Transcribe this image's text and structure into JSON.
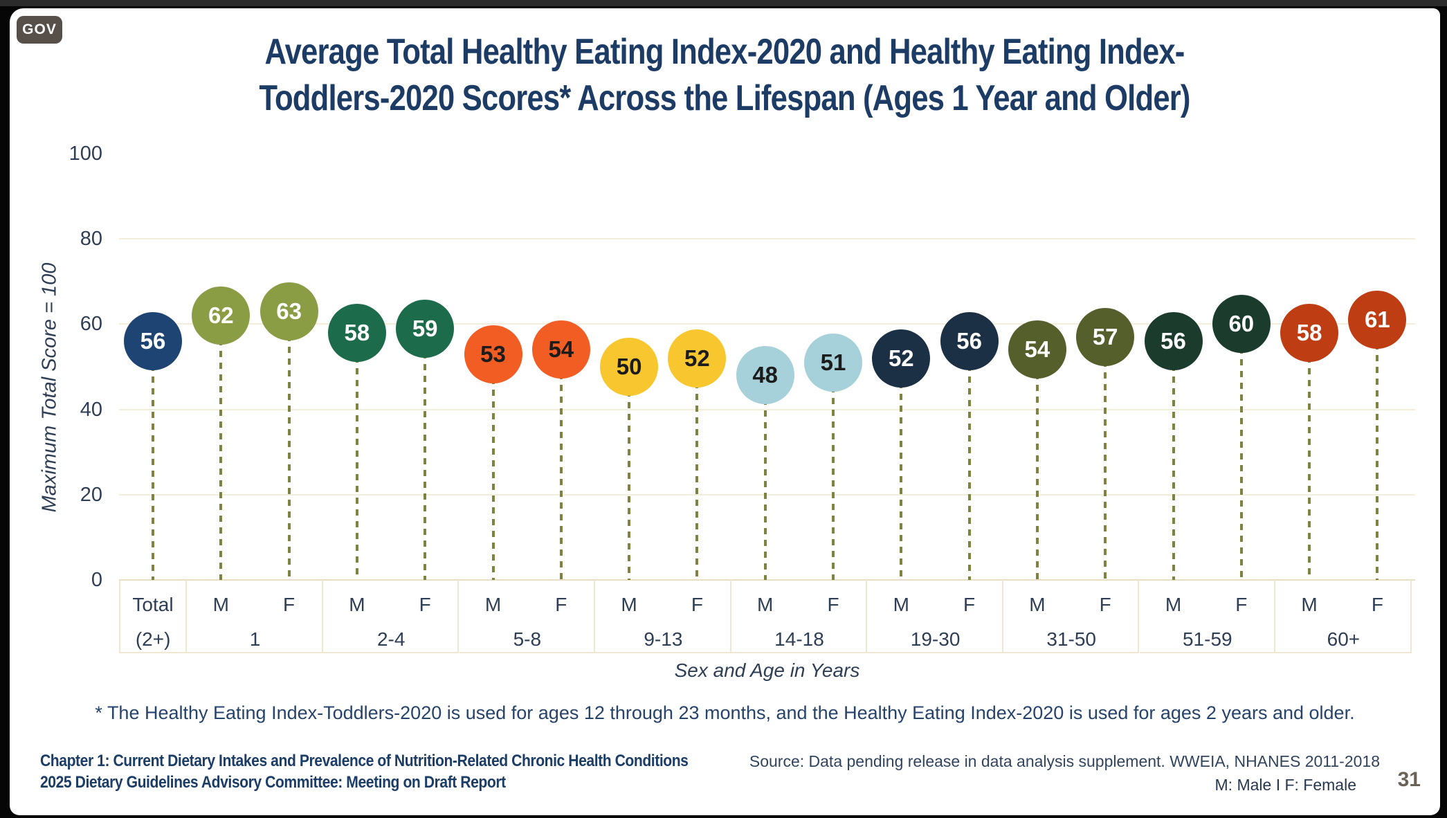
{
  "badge": {
    "label": "GOV"
  },
  "title": {
    "line1": "Average Total Healthy Eating Index-2020 and Healthy Eating Index-",
    "line2": "Toddlers-2020 Scores* Across the Lifespan (Ages 1 Year and Older)"
  },
  "chart_data": {
    "type": "lollipop",
    "title": "Average Total Healthy Eating Index-2020 and Healthy Eating Index-Toddlers-2020 Scores* Across the Lifespan (Ages 1 Year and Older)",
    "ylabel": "Maximum Total Score = 100",
    "xlabel": "Sex and Age in Years",
    "ylim": [
      0,
      100
    ],
    "yticks": [
      0,
      20,
      40,
      60,
      80,
      100
    ],
    "grid": true,
    "legend_position": "none",
    "stem_color": "#7e8440",
    "grid_color": "#f3eddc",
    "baseline_color": "#e8dec6",
    "groups": [
      {
        "age_label": "(2+)",
        "color": "#1d4472",
        "value_text_color": "#ffffff",
        "points": [
          {
            "sex": "Total",
            "value": 56
          }
        ]
      },
      {
        "age_label": "1",
        "color": "#8a9c44",
        "value_text_color": "#ffffff",
        "points": [
          {
            "sex": "M",
            "value": 62
          },
          {
            "sex": "F",
            "value": 63
          }
        ]
      },
      {
        "age_label": "2-4",
        "color": "#1c6b4a",
        "value_text_color": "#ffffff",
        "points": [
          {
            "sex": "M",
            "value": 58
          },
          {
            "sex": "F",
            "value": 59
          }
        ]
      },
      {
        "age_label": "5-8",
        "color": "#f15d22",
        "value_text_color": "#1c1c1c",
        "points": [
          {
            "sex": "M",
            "value": 53
          },
          {
            "sex": "F",
            "value": 54
          }
        ]
      },
      {
        "age_label": "9-13",
        "color": "#f8c62e",
        "value_text_color": "#1c1c1c",
        "points": [
          {
            "sex": "M",
            "value": 50
          },
          {
            "sex": "F",
            "value": 52
          }
        ]
      },
      {
        "age_label": "14-18",
        "color": "#a7d1da",
        "value_text_color": "#1c1c1c",
        "points": [
          {
            "sex": "M",
            "value": 48
          },
          {
            "sex": "F",
            "value": 51
          }
        ]
      },
      {
        "age_label": "19-30",
        "color": "#1b2f45",
        "value_text_color": "#ffffff",
        "points": [
          {
            "sex": "M",
            "value": 52
          },
          {
            "sex": "F",
            "value": 56
          }
        ]
      },
      {
        "age_label": "31-50",
        "color": "#545f2b",
        "value_text_color": "#ffffff",
        "points": [
          {
            "sex": "M",
            "value": 54
          },
          {
            "sex": "F",
            "value": 57
          }
        ]
      },
      {
        "age_label": "51-59",
        "color": "#1b3b2c",
        "value_text_color": "#ffffff",
        "points": [
          {
            "sex": "M",
            "value": 56
          },
          {
            "sex": "F",
            "value": 60
          }
        ]
      },
      {
        "age_label": "60+",
        "color": "#bf3d13",
        "value_text_color": "#ffffff",
        "points": [
          {
            "sex": "M",
            "value": 58
          },
          {
            "sex": "F",
            "value": 61
          }
        ]
      }
    ]
  },
  "footnote": "* The Healthy Eating Index-Toddlers-2020 is used for ages 12 through 23 months, and the Healthy Eating Index-2020 is used for ages 2 years and older.",
  "footer": {
    "left_line1": "Chapter 1: Current Dietary Intakes and Prevalence of Nutrition-Related Chronic Health Conditions",
    "left_line2": "2025 Dietary Guidelines Advisory Committee: Meeting on Draft Report",
    "source": "Source: Data pending release in data analysis supplement. WWEIA, NHANES 2011-2018",
    "legend": "M: Male  I  F: Female",
    "page_number": "31"
  }
}
